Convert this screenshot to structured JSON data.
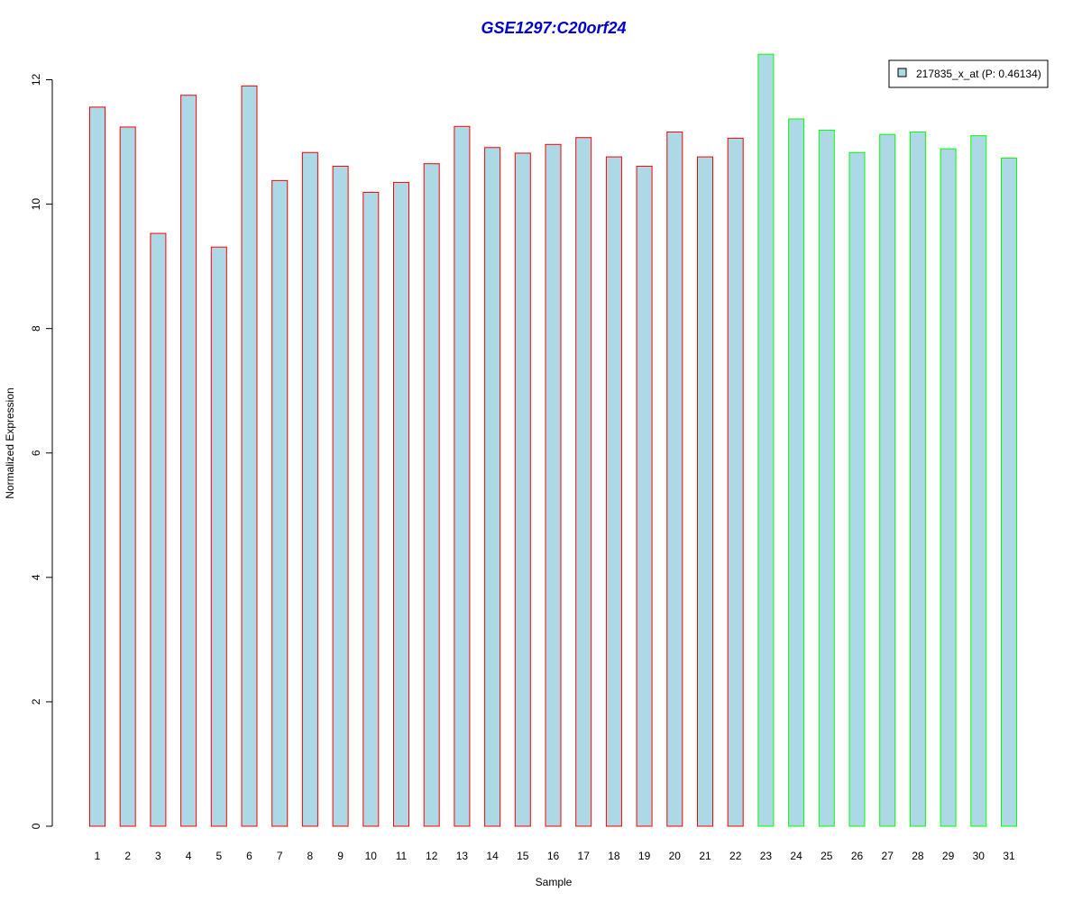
{
  "chart_data": {
    "type": "bar",
    "title": "GSE1297:C20orf24",
    "xlabel": "Sample",
    "ylabel": "Normalized Expression",
    "ylim": [
      0,
      12.45
    ],
    "yticks": [
      0,
      2,
      4,
      6,
      8,
      10,
      12
    ],
    "categories": [
      "1",
      "2",
      "3",
      "4",
      "5",
      "6",
      "7",
      "8",
      "9",
      "10",
      "11",
      "12",
      "13",
      "14",
      "15",
      "16",
      "17",
      "18",
      "19",
      "20",
      "21",
      "22",
      "23",
      "24",
      "25",
      "26",
      "27",
      "28",
      "29",
      "30",
      "31"
    ],
    "values": [
      11.56,
      11.24,
      9.53,
      11.75,
      9.31,
      11.9,
      10.38,
      10.83,
      10.61,
      10.19,
      10.35,
      10.65,
      11.25,
      10.91,
      10.82,
      10.96,
      11.07,
      10.76,
      10.61,
      11.16,
      10.76,
      11.06,
      12.41,
      11.37,
      11.19,
      10.83,
      11.12,
      11.16,
      10.89,
      11.1,
      10.74
    ],
    "groups": [
      "red",
      "red",
      "red",
      "red",
      "red",
      "red",
      "red",
      "red",
      "red",
      "red",
      "red",
      "red",
      "red",
      "red",
      "red",
      "red",
      "red",
      "red",
      "red",
      "red",
      "red",
      "red",
      "green",
      "green",
      "green",
      "green",
      "green",
      "green",
      "green",
      "green",
      "green"
    ],
    "series": [
      {
        "name": "217835_x_at (P: 0.46134)"
      }
    ],
    "legend_position": "top-right",
    "grid": false,
    "colors": {
      "fill": "#add8e6",
      "group_red": "#ff0000",
      "group_green": "#00ff00",
      "title": "#0000cd",
      "axis": "#000000"
    }
  }
}
